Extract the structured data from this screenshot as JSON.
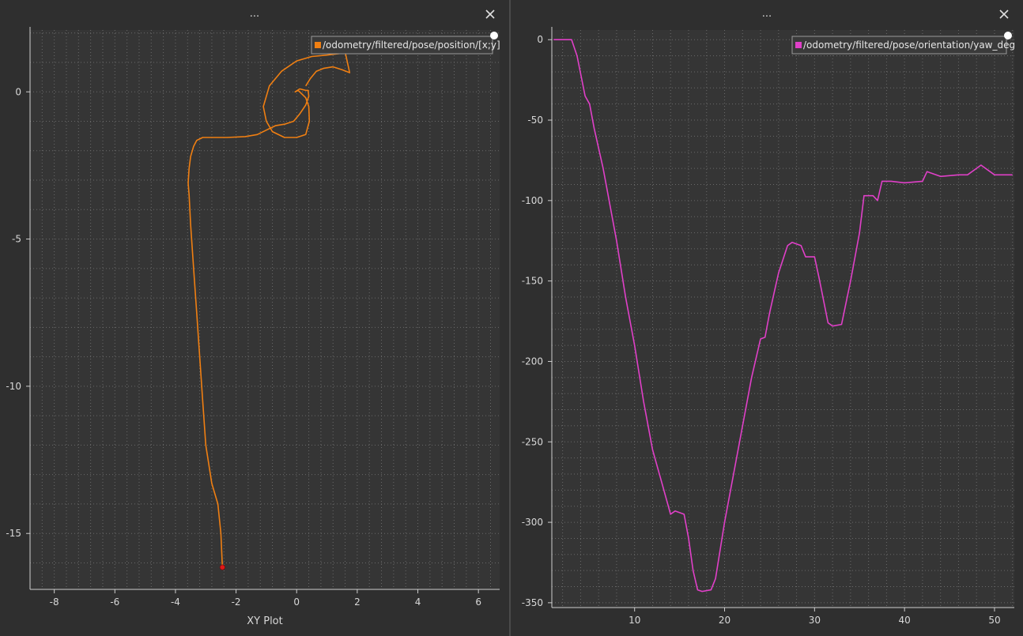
{
  "panels": [
    {
      "title": "...",
      "close_icon": "close-icon",
      "legend_label": "/odometry/filtered/pose/position/[x;y]",
      "xlabel": "XY Plot"
    },
    {
      "title": "...",
      "close_icon": "close-icon",
      "legend_label": "/odometry/filtered/pose/orientation/yaw_deg",
      "xlabel": ""
    }
  ],
  "chart_data": [
    {
      "type": "line",
      "title": "",
      "xlabel": "XY Plot",
      "ylabel": "",
      "xlim": [
        -8.8,
        6.7
      ],
      "ylim": [
        -16.9,
        2.1
      ],
      "xticks": [
        -8,
        -6,
        -4,
        -2,
        0,
        2,
        4,
        6
      ],
      "yticks": [
        -15,
        -10,
        -5,
        0
      ],
      "grid": true,
      "legend": "top-right",
      "series": [
        {
          "name": "/odometry/filtered/pose/position/[x;y]",
          "color": "#f07f12",
          "x": [
            -2.45,
            -2.5,
            -2.6,
            -2.8,
            -3.0,
            -3.1,
            -3.2,
            -3.3,
            -3.4,
            -3.5,
            -3.55,
            -3.58,
            -3.55,
            -3.5,
            -3.4,
            -3.3,
            -3.1,
            -2.8,
            -2.3,
            -1.7,
            -1.3,
            -1.0,
            -0.7,
            -0.4,
            -0.1,
            0.1,
            0.3,
            0.4,
            0.38,
            0.3,
            0.1,
            -0.05,
            0.05,
            0.3,
            0.4,
            0.42,
            0.3,
            0.0,
            -0.4,
            -0.8,
            -1.0,
            -1.1,
            -0.9,
            -0.5,
            0.0,
            0.5,
            1.0,
            1.4,
            1.6,
            1.75,
            1.5,
            1.2,
            0.9,
            0.65,
            0.45,
            0.3
          ],
          "y": [
            -16.15,
            -15.0,
            -14.0,
            -13.3,
            -12.0,
            -10.5,
            -9.0,
            -7.5,
            -6.0,
            -4.5,
            -3.5,
            -3.1,
            -2.6,
            -2.2,
            -1.85,
            -1.65,
            -1.55,
            -1.55,
            -1.55,
            -1.52,
            -1.45,
            -1.3,
            -1.15,
            -1.1,
            -1.0,
            -0.75,
            -0.45,
            -0.15,
            0.05,
            0.05,
            0.1,
            0.0,
            0.05,
            -0.2,
            -0.5,
            -1.0,
            -1.45,
            -1.55,
            -1.55,
            -1.35,
            -1.0,
            -0.5,
            0.2,
            0.7,
            1.05,
            1.2,
            1.25,
            1.3,
            1.35,
            0.65,
            0.75,
            0.85,
            0.8,
            0.7,
            0.45,
            0.2
          ]
        }
      ]
    },
    {
      "type": "line",
      "title": "",
      "xlabel": "",
      "ylabel": "",
      "xlim": [
        0.8,
        52.2
      ],
      "ylim": [
        -353,
        6
      ],
      "xticks": [
        10,
        20,
        30,
        40,
        50
      ],
      "yticks": [
        0,
        -50,
        -100,
        -150,
        -200,
        -250,
        -300,
        -350
      ],
      "grid": true,
      "legend": "top-right",
      "series": [
        {
          "name": "/odometry/filtered/pose/orientation/yaw_deg",
          "color": "#e040c8",
          "x": [
            1.0,
            3.0,
            3.6,
            4.5,
            5.0,
            5.5,
            6.5,
            7.0,
            8.0,
            9.0,
            10.0,
            11.0,
            12.0,
            13.0,
            14.0,
            14.5,
            15.5,
            16.0,
            16.5,
            17.0,
            17.5,
            18.5,
            19.0,
            20.0,
            21.0,
            22.0,
            23.0,
            24.0,
            24.5,
            25.0,
            26.0,
            27.0,
            27.5,
            28.5,
            29.0,
            30.0,
            30.5,
            31.5,
            32.0,
            33.0,
            34.0,
            35.0,
            35.5,
            36.5,
            37.0,
            37.5,
            38.5,
            40.0,
            42.0,
            42.5,
            43.0,
            44.0,
            46.0,
            47.0,
            48.0,
            48.5,
            50.0,
            52.0
          ],
          "y": [
            0,
            0,
            -10,
            -35,
            -40,
            -55,
            -80,
            -95,
            -125,
            -160,
            -190,
            -225,
            -255,
            -275,
            -295,
            -293,
            -295,
            -310,
            -330,
            -342,
            -343,
            -342,
            -335,
            -300,
            -270,
            -240,
            -210,
            -186,
            -185,
            -170,
            -145,
            -128,
            -126,
            -128,
            -135,
            -135,
            -148,
            -176,
            -178,
            -177,
            -150,
            -120,
            -97,
            -97,
            -100,
            -88,
            -88,
            -89,
            -88,
            -82,
            -83,
            -85,
            -84,
            -84,
            -80,
            -78,
            -84,
            -84
          ]
        }
      ]
    }
  ]
}
